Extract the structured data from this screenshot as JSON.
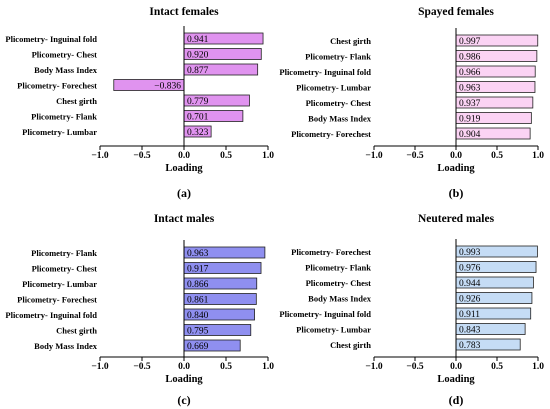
{
  "chart_data": [
    {
      "panel": "(a)",
      "type": "bar",
      "orientation": "horizontal",
      "title": "Intact females",
      "xlabel": "Loading",
      "xlim": [
        -1.0,
        1.0
      ],
      "xticks": [
        "−1.0",
        "−0.5",
        "0.0",
        "0.5",
        "1.0"
      ],
      "bar_color": "#e093ef",
      "categories": [
        "Plicometry- Inguinal fold",
        "Plicometry- Chest",
        "Body Mass Index",
        "Plicometry- Forechest",
        "Chest girth",
        "Plicometry- Flank",
        "Plicometry- Lumbar"
      ],
      "values": [
        0.941,
        0.92,
        0.877,
        -0.836,
        0.779,
        0.701,
        0.323
      ],
      "labels": [
        "0.941",
        "0.920",
        "0.877",
        "−0.836",
        "0.779",
        "0.701",
        "0.323"
      ]
    },
    {
      "panel": "(b)",
      "type": "bar",
      "orientation": "horizontal",
      "title": "Spayed females",
      "xlabel": "Loading",
      "xlim": [
        -1.0,
        1.0
      ],
      "xticks": [
        "−1.0",
        "−0.5",
        "0.0",
        "0.5",
        "1.0"
      ],
      "bar_color": "#fbd3f4",
      "categories": [
        "Chest girth",
        "Plicometry- Flank",
        "Plicometry- Inguinal fold",
        "Plicometry- Lumbar",
        "Plicometry- Chest",
        "Body Mass Index",
        "Plicometry- Forechest"
      ],
      "values": [
        0.997,
        0.986,
        0.966,
        0.963,
        0.937,
        0.919,
        0.904
      ],
      "labels": [
        "0.997",
        "0.986",
        "0.966",
        "0.963",
        "0.937",
        "0.919",
        "0.904"
      ]
    },
    {
      "panel": "(c)",
      "type": "bar",
      "orientation": "horizontal",
      "title": "Intact males",
      "xlabel": "Loading",
      "xlim": [
        -1.0,
        1.0
      ],
      "xticks": [
        "−1.0",
        "−0.5",
        "0.0",
        "0.5",
        "1.0"
      ],
      "bar_color": "#8f8ff0",
      "categories": [
        "Plicometry- Flank",
        "Plicometry- Chest",
        "Plicometry- Lumbar",
        "Plicometry- Forechest",
        "Plicometry- Inguinal fold",
        "Chest girth",
        "Body Mass Index"
      ],
      "values": [
        0.963,
        0.917,
        0.866,
        0.861,
        0.84,
        0.795,
        0.669
      ],
      "labels": [
        "0.963",
        "0.917",
        "0.866",
        "0.861",
        "0.840",
        "0.795",
        "0.669"
      ]
    },
    {
      "panel": "(d)",
      "type": "bar",
      "orientation": "horizontal",
      "title": "Neutered males",
      "xlabel": "Loading",
      "xlim": [
        -1.0,
        1.0
      ],
      "xticks": [
        "−1.0",
        "−0.5",
        "0.0",
        "0.5",
        "1.0"
      ],
      "bar_color": "#c5dcf5",
      "categories": [
        "Plicometry- Forechest",
        "Plicometry- Flank",
        "Plicometry- Chest",
        "Body Mass Index",
        "Plicometry- Inguinal fold",
        "Plicometry- Lumbar",
        "Chest girth"
      ],
      "values": [
        0.993,
        0.976,
        0.944,
        0.926,
        0.911,
        0.843,
        0.783
      ],
      "labels": [
        "0.993",
        "0.976",
        "0.944",
        "0.926",
        "0.911",
        "0.843",
        "0.783"
      ]
    }
  ]
}
